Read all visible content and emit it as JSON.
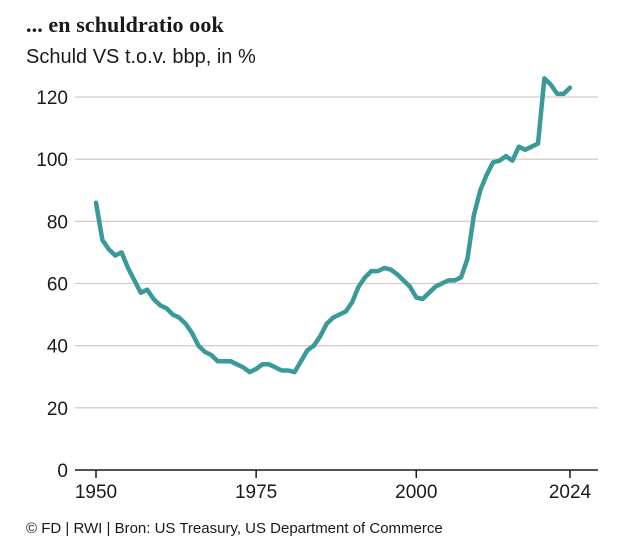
{
  "title": "... en schuldratio ook",
  "subtitle": "Schuld VS t.o.v. bbp, in %",
  "source": "© FD | RWI | Bron: US Treasury, US Department of Commerce",
  "colors": {
    "line": "#3a9a9a",
    "grid": "#d9ccc7",
    "axis": "#1a1a1a"
  },
  "chart_data": {
    "type": "line",
    "title": "... en schuldratio ook",
    "ylabel": "Schuld VS t.o.v. bbp, in %",
    "xlabel": "",
    "xlim": [
      1948,
      2027
    ],
    "ylim": [
      0,
      130
    ],
    "grid": true,
    "yticks": [
      0,
      20,
      40,
      60,
      80,
      100,
      120
    ],
    "xticks": [
      1950,
      1975,
      2000,
      2024
    ],
    "series": [
      {
        "values": [
          [
            1950,
            86
          ],
          [
            1951,
            74
          ],
          [
            1952,
            71
          ],
          [
            1953,
            69
          ],
          [
            1954,
            70
          ],
          [
            1955,
            65
          ],
          [
            1956,
            61
          ],
          [
            1957,
            57
          ],
          [
            1958,
            58
          ],
          [
            1959,
            55
          ],
          [
            1960,
            53
          ],
          [
            1961,
            52
          ],
          [
            1962,
            50
          ],
          [
            1963,
            49
          ],
          [
            1964,
            47
          ],
          [
            1965,
            44
          ],
          [
            1966,
            40
          ],
          [
            1967,
            38
          ],
          [
            1968,
            37
          ],
          [
            1969,
            35
          ],
          [
            1970,
            35
          ],
          [
            1971,
            35
          ],
          [
            1972,
            34
          ],
          [
            1973,
            33
          ],
          [
            1974,
            31.5
          ],
          [
            1975,
            32.5
          ],
          [
            1976,
            34
          ],
          [
            1977,
            34
          ],
          [
            1978,
            33
          ],
          [
            1979,
            32
          ],
          [
            1980,
            32
          ],
          [
            1981,
            31.5
          ],
          [
            1982,
            35
          ],
          [
            1983,
            38.5
          ],
          [
            1984,
            40
          ],
          [
            1985,
            43
          ],
          [
            1986,
            47
          ],
          [
            1987,
            49
          ],
          [
            1988,
            50
          ],
          [
            1989,
            51
          ],
          [
            1990,
            54
          ],
          [
            1991,
            59
          ],
          [
            1992,
            62
          ],
          [
            1993,
            64
          ],
          [
            1994,
            64
          ],
          [
            1995,
            65
          ],
          [
            1996,
            64.5
          ],
          [
            1997,
            63
          ],
          [
            1998,
            61
          ],
          [
            1999,
            59
          ],
          [
            2000,
            55.5
          ],
          [
            2001,
            55
          ],
          [
            2002,
            57
          ],
          [
            2003,
            59
          ],
          [
            2004,
            60
          ],
          [
            2005,
            61
          ],
          [
            2006,
            61
          ],
          [
            2007,
            62
          ],
          [
            2008,
            68
          ],
          [
            2009,
            82
          ],
          [
            2010,
            90
          ],
          [
            2011,
            95
          ],
          [
            2012,
            99
          ],
          [
            2013,
            99.5
          ],
          [
            2014,
            101
          ],
          [
            2015,
            99.5
          ],
          [
            2016,
            104
          ],
          [
            2017,
            103
          ],
          [
            2018,
            104
          ],
          [
            2019,
            105
          ],
          [
            2020,
            126
          ],
          [
            2021,
            124
          ],
          [
            2022,
            121
          ],
          [
            2023,
            121
          ],
          [
            2024,
            123
          ]
        ]
      }
    ]
  }
}
